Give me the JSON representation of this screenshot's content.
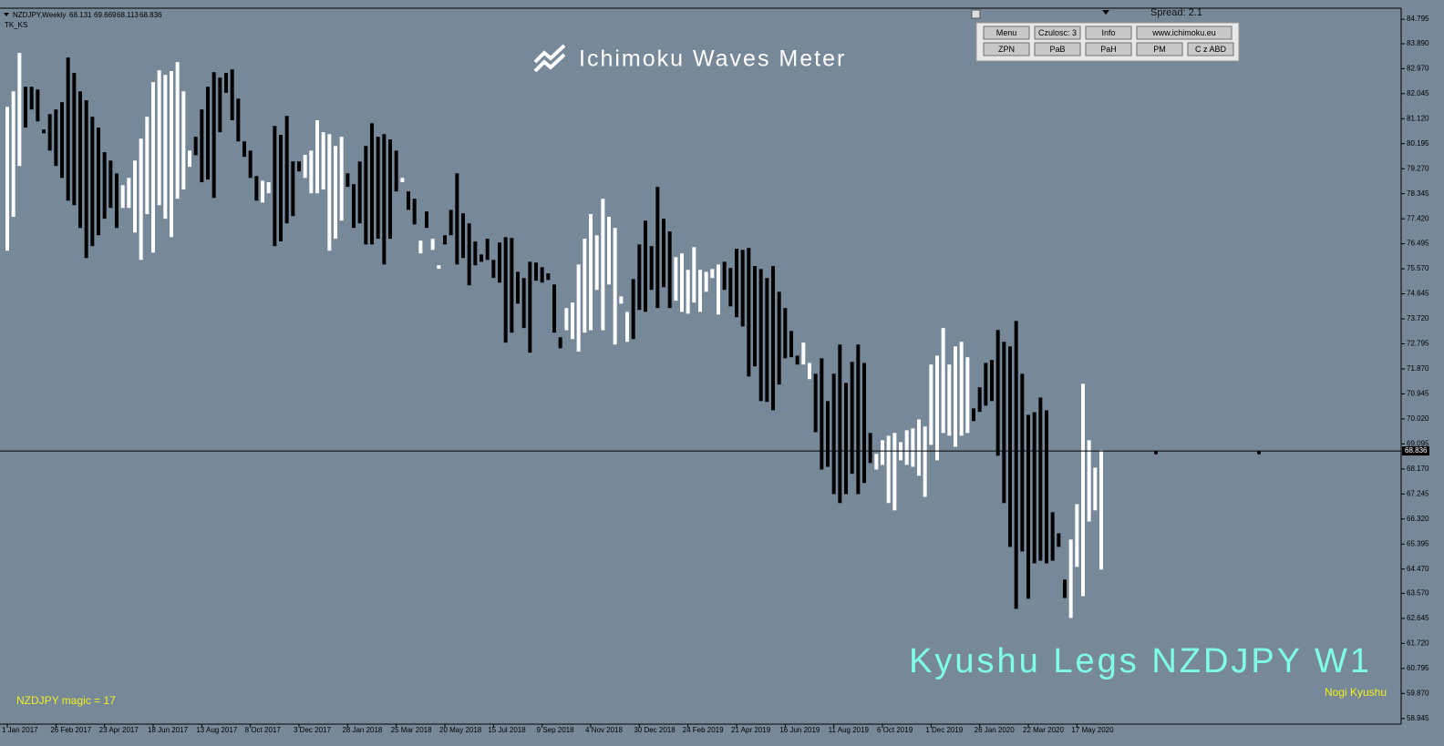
{
  "header": {
    "symbol": "NZDJPY,Weekly",
    "ohlc": [
      68.131,
      69.669,
      68.113,
      68.836
    ],
    "indicator": "TK_KS"
  },
  "title": "Ichimoku Waves Meter",
  "spread": "Spread: 2.1",
  "buttons": [
    [
      "Menu",
      "Czulosc: 3",
      "Info",
      "www.ichimoku.eu"
    ],
    [
      "ZPN",
      "PaB",
      "PaH",
      "PM",
      "C z ABD"
    ]
  ],
  "overlay": {
    "main": "Kyushu Legs NZDJPY W1",
    "sub": "Nogi Kyushu",
    "magic": "NZDJPY  magic = 17"
  },
  "chart_data": {
    "type": "range-bar",
    "categories": [
      "1 Jan 2017",
      null,
      null,
      null,
      null,
      null,
      null,
      null,
      "26 Feb 2017",
      null,
      null,
      null,
      null,
      null,
      null,
      null,
      "23 Apr 2017",
      null,
      null,
      null,
      null,
      null,
      null,
      null,
      "18 Jun 2017",
      null,
      null,
      null,
      null,
      null,
      null,
      null,
      "13 Aug 2017",
      null,
      null,
      null,
      null,
      null,
      null,
      null,
      "8 Oct 2017",
      null,
      null,
      null,
      null,
      null,
      null,
      null,
      "3 Dec 2017",
      null,
      null,
      null,
      null,
      null,
      null,
      null,
      "28 Jan 2018",
      null,
      null,
      null,
      null,
      null,
      null,
      null,
      "25 Mar 2018",
      null,
      null,
      null,
      null,
      null,
      null,
      null,
      "20 May 2018",
      null,
      null,
      null,
      null,
      null,
      null,
      null,
      "15 Jul 2018",
      null,
      null,
      null,
      null,
      null,
      null,
      null,
      "9 Sep 2018",
      null,
      null,
      null,
      null,
      null,
      null,
      null,
      "4 Nov 2018",
      null,
      null,
      null,
      null,
      null,
      null,
      null,
      "30 Dec 2018",
      null,
      null,
      null,
      null,
      null,
      null,
      null,
      "24 Feb 2019",
      null,
      null,
      null,
      null,
      null,
      null,
      null,
      "21 Apr 2019",
      null,
      null,
      null,
      null,
      null,
      null,
      null,
      "16 Jun 2019",
      null,
      null,
      null,
      null,
      null,
      null,
      null,
      "11 Aug 2019",
      null,
      null,
      null,
      null,
      null,
      null,
      null,
      "6 Oct 2019",
      null,
      null,
      null,
      null,
      null,
      null,
      null,
      "1 Dec 2019",
      null,
      null,
      null,
      null,
      null,
      null,
      null,
      "26 Jan 2020",
      null,
      null,
      null,
      null,
      null,
      null,
      null,
      "22 Mar 2020",
      null,
      null,
      null,
      null,
      null,
      null,
      null,
      "17 May 2020",
      null,
      null,
      null,
      null
    ],
    "high": [
      81.56,
      82.13,
      83.55,
      82.3,
      82.3,
      82.2,
      80.72,
      81.29,
      81.46,
      81.73,
      83.38,
      82.81,
      82.13,
      81.8,
      81.19,
      80.79,
      79.88,
      79.57,
      79.1,
      78.66,
      78.93,
      79.57,
      80.38,
      81.19,
      82.47,
      82.91,
      82.74,
      82.88,
      83.21,
      82.13,
      79.94,
      80.45,
      81.46,
      82.3,
      82.84,
      82.64,
      82.81,
      82.94,
      81.86,
      80.28,
      79.94,
      79.0,
      78.83,
      78.77,
      80.85,
      80.52,
      81.22,
      79.54,
      79.54,
      79.78,
      79.94,
      81.06,
      80.62,
      80.55,
      80.11,
      80.45,
      79.1,
      78.7,
      79.54,
      80.11,
      80.95,
      80.45,
      80.55,
      80.35,
      79.94,
      78.93,
      78.43,
      78.16,
      76.61,
      77.69,
      76.68,
      75.7,
      76.81,
      77.75,
      79.1,
      77.62,
      77.25,
      76.58,
      76.1,
      76.68,
      75.9,
      76.54,
      76.74,
      76.71,
      75.46,
      75.23,
      75.83,
      75.8,
      75.63,
      75.4,
      74.99,
      73.04,
      74.12,
      74.32,
      75.73,
      76.68,
      77.59,
      76.81,
      78.16,
      77.49,
      77.08,
      74.55,
      73.98,
      75.19,
      76.47,
      77.35,
      76.41,
      78.6,
      77.42,
      76.95,
      76.0,
      76.14,
      75.53,
      76.37,
      75.53,
      75.46,
      75.56,
      75.73,
      75.83,
      75.6,
      76.31,
      76.27,
      76.34,
      75.67,
      75.56,
      75.23,
      75.67,
      74.72,
      74.12,
      73.27,
      72.36,
      72.84,
      72.09,
      71.69,
      72.26,
      70.68,
      71.69,
      72.77,
      71.35,
      72.13,
      72.77,
      72.09,
      69.5,
      68.73,
      69.23,
      69.4,
      69.5,
      69.16,
      69.6,
      69.67,
      70.0,
      69.74,
      72.03,
      72.36,
      73.38,
      72.03,
      72.7,
      72.87,
      72.3,
      70.41,
      71.19,
      72.09,
      72.2,
      73.31,
      72.87,
      72.7,
      73.64,
      71.69,
      70.17,
      70.27,
      70.81,
      70.34,
      66.57,
      65.79,
      64.08,
      65.56,
      66.87,
      71.32,
      69.23,
      68.22,
      68.86
    ],
    "low": [
      76.24,
      77.49,
      79.37,
      80.79,
      81.46,
      81.02,
      80.58,
      79.94,
      79.37,
      78.93,
      78.09,
      77.92,
      77.08,
      75.97,
      76.41,
      76.81,
      77.42,
      77.82,
      77.08,
      77.82,
      77.82,
      76.91,
      75.9,
      77.59,
      76.17,
      77.92,
      77.42,
      76.74,
      78.16,
      78.5,
      79.34,
      79.77,
      78.77,
      78.87,
      78.19,
      80.62,
      82.07,
      81.06,
      80.28,
      79.71,
      78.93,
      78.09,
      78.02,
      78.36,
      76.41,
      76.58,
      77.25,
      77.52,
      79.17,
      78.93,
      78.36,
      78.36,
      78.5,
      76.24,
      76.68,
      77.35,
      78.6,
      77.08,
      77.25,
      76.47,
      76.47,
      76.68,
      75.73,
      76.68,
      78.43,
      78.77,
      77.75,
      77.21,
      76.14,
      77.08,
      76.27,
      75.57,
      76.47,
      76.81,
      75.73,
      75.97,
      74.96,
      75.7,
      75.83,
      75.9,
      75.23,
      75.06,
      72.84,
      73.21,
      74.28,
      73.38,
      72.47,
      75.13,
      75.06,
      75.16,
      73.21,
      72.63,
      73.3,
      72.97,
      72.51,
      73.21,
      73.3,
      74.79,
      73.3,
      74.99,
      72.77,
      74.28,
      72.87,
      72.97,
      74.05,
      73.98,
      74.79,
      74.12,
      74.89,
      74.12,
      74.39,
      73.98,
      73.91,
      74.32,
      73.98,
      74.72,
      75.23,
      73.88,
      74.79,
      74.18,
      73.78,
      73.44,
      71.59,
      71.96,
      70.68,
      70.65,
      70.34,
      71.29,
      72.26,
      72.3,
      72.03,
      72.03,
      71.49,
      69.53,
      68.15,
      68.25,
      67.24,
      66.91,
      67.24,
      67.99,
      67.24,
      67.65,
      68.39,
      68.15,
      68.32,
      66.91,
      66.64,
      68.49,
      68.32,
      68.25,
      67.92,
      67.14,
      69.06,
      68.49,
      69.5,
      69.4,
      68.99,
      69.4,
      69.5,
      69.94,
      70.28,
      70.51,
      70.68,
      68.66,
      66.91,
      65.29,
      63.0,
      65.12,
      63.37,
      64.68,
      64.78,
      64.68,
      64.78,
      65.29,
      63.4,
      62.66,
      64.55,
      63.47,
      66.23,
      66.64,
      64.45
    ],
    "colors": [
      "#fff",
      "#fff",
      "#fff",
      "#000",
      "#000",
      "#000",
      "#000",
      "#000",
      "#000",
      "#000",
      "#000",
      "#000",
      "#000",
      "#000",
      "#000",
      "#000",
      "#000",
      "#000",
      "#000",
      "#fff",
      "#fff",
      "#fff",
      "#fff",
      "#fff",
      "#fff",
      "#fff",
      "#fff",
      "#fff",
      "#fff",
      "#fff",
      "#fff",
      "#000",
      "#000",
      "#000",
      "#000",
      "#000",
      "#000",
      "#000",
      "#000",
      "#000",
      "#000",
      "#000",
      "#fff",
      "#fff",
      "#000",
      "#000",
      "#000",
      "#000",
      "#000",
      "#fff",
      "#fff",
      "#fff",
      "#fff",
      "#fff",
      "#fff",
      "#fff",
      "#000",
      "#000",
      "#000",
      "#000",
      "#000",
      "#000",
      "#000",
      "#000",
      "#000",
      "#fff",
      "#000",
      "#000",
      "#fff",
      "#000",
      "#fff",
      "#fff",
      "#000",
      "#000",
      "#000",
      "#000",
      "#000",
      "#000",
      "#000",
      "#000",
      "#000",
      "#000",
      "#000",
      "#000",
      "#000",
      "#000",
      "#000",
      "#000",
      "#000",
      "#000",
      "#000",
      "#000",
      "#fff",
      "#fff",
      "#fff",
      "#fff",
      "#fff",
      "#fff",
      "#fff",
      "#fff",
      "#fff",
      "#fff",
      "#fff",
      "#000",
      "#000",
      "#000",
      "#000",
      "#000",
      "#000",
      "#000",
      "#fff",
      "#fff",
      "#fff",
      "#fff",
      "#fff",
      "#fff",
      "#fff",
      "#fff",
      "#000",
      "#000",
      "#000",
      "#000",
      "#000",
      "#000",
      "#000",
      "#000",
      "#000",
      "#000",
      "#000",
      "#000",
      "#000",
      "#fff",
      "#fff",
      "#000",
      "#000",
      "#000",
      "#000",
      "#000",
      "#000",
      "#000",
      "#000",
      "#000",
      "#000",
      "#fff",
      "#fff",
      "#fff",
      "#fff",
      "#fff",
      "#fff",
      "#fff",
      "#fff",
      "#fff",
      "#fff",
      "#fff",
      "#fff",
      "#fff",
      "#fff",
      "#fff",
      "#fff",
      "#000",
      "#000",
      "#000",
      "#000",
      "#000",
      "#000",
      "#000",
      "#000",
      "#000",
      "#000",
      "#000",
      "#000",
      "#000",
      "#000",
      "#000",
      "#000",
      "#fff",
      "#fff",
      "#fff",
      "#fff",
      "#fff",
      "#fff"
    ],
    "ylim": [
      58.77,
      85.17
    ],
    "yticks": [
      84.795,
      {
        "value": 83.89,
        "label": "83.890"
      },
      {
        "value": 82.97,
        "label": "82.970"
      },
      82.045,
      {
        "value": 81.12,
        "label": "81.120"
      },
      80.195,
      {
        "value": 79.27,
        "label": "79.270"
      },
      78.345,
      {
        "value": 77.42,
        "label": "77.420"
      },
      76.495,
      {
        "value": 75.57,
        "label": "75.570"
      },
      74.645,
      {
        "value": 73.72,
        "label": "73.720"
      },
      72.795,
      {
        "value": 71.87,
        "label": "71.870"
      },
      70.945,
      {
        "value": 70.02,
        "label": "70.020"
      },
      69.095,
      {
        "value": 68.17,
        "label": "68.170"
      },
      67.245,
      {
        "value": 66.32,
        "label": "66.320"
      },
      65.395,
      {
        "value": 64.47,
        "label": "64.470"
      },
      {
        "value": 63.57,
        "label": "63.570"
      },
      62.645,
      {
        "value": 61.72,
        "label": "61.720"
      },
      60.795,
      {
        "value": 59.87,
        "label": "59.870"
      },
      58.945
    ]
  }
}
